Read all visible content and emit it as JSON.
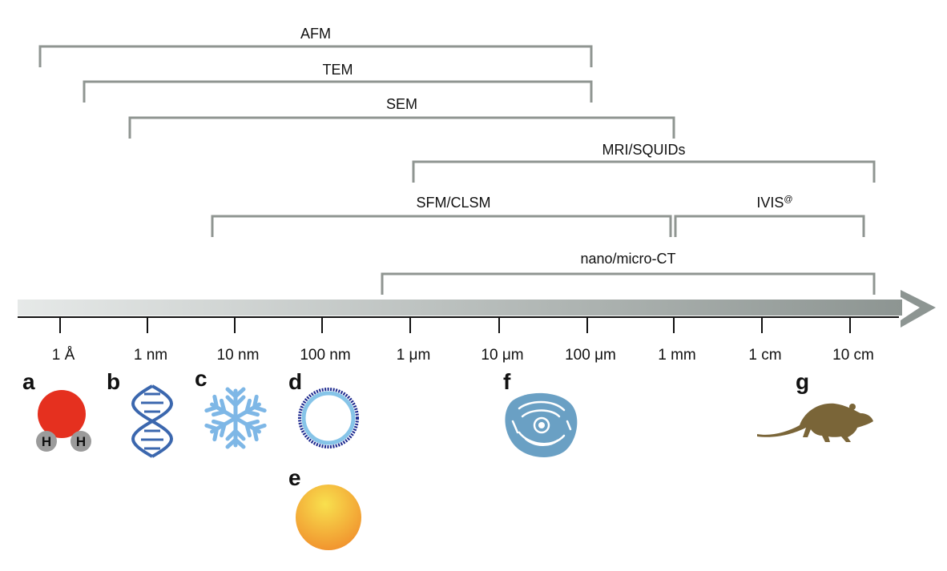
{
  "ranges": [
    {
      "label": "AFM",
      "from": "1 Å",
      "to": "100 µm"
    },
    {
      "label": "TEM",
      "from": "~0.5 nm",
      "to": "100 µm"
    },
    {
      "label": "SEM",
      "from": "~2 nm",
      "to": "1 mm"
    },
    {
      "label": "MRI/SQUIDs",
      "from": "1 µm",
      "to": "10 cm"
    },
    {
      "label": "SFM/CLSM",
      "from": "~5 nm",
      "to": "1 mm"
    },
    {
      "label": "IVIS",
      "label_superscript": "@",
      "from": "1 mm",
      "to": "10 cm"
    },
    {
      "label": "nano/micro-CT",
      "from": "~0.5 µm",
      "to": "10 cm"
    }
  ],
  "axis": {
    "ticks": [
      "1 Å",
      "1 nm",
      "10 nm",
      "100 nm",
      "1 µm",
      "10 µm",
      "100 µm",
      "1 mm",
      "1 cm",
      "10 cm"
    ],
    "ticks_display": [
      "1 Å",
      "1 nm",
      "10 nm",
      "100 nm",
      "1 μm",
      "10 μm",
      "100 μm",
      "1 mm",
      "1 cm",
      "10 cm"
    ]
  },
  "panels": [
    {
      "letter": "a",
      "icon": "water-molecule-icon",
      "atom_labels": [
        "H",
        "H"
      ]
    },
    {
      "letter": "b",
      "icon": "dna-icon"
    },
    {
      "letter": "c",
      "icon": "snowflake-icon"
    },
    {
      "letter": "d",
      "icon": "vesicle-icon"
    },
    {
      "letter": "e",
      "icon": "nanoparticle-sphere-icon"
    },
    {
      "letter": "f",
      "icon": "cell-icon"
    },
    {
      "letter": "g",
      "icon": "rodent-icon"
    }
  ],
  "colors": {
    "bracket": "#8f9591",
    "axis_arrow_start": "#e6e9e8",
    "axis_arrow_end": "#8d9592",
    "oxygen": "#e5301f",
    "hydrogen": "#9b9b9b",
    "dna": "#3b67ae",
    "snowflake": "#7eb7e6",
    "vesicle_outer": "#1d2a8f",
    "vesicle_inner": "#86c4e8",
    "sphere_light": "#f7d84a",
    "sphere_dark": "#f19a2e",
    "cell": "#6aa0c4",
    "rodent": "#7a6538"
  }
}
